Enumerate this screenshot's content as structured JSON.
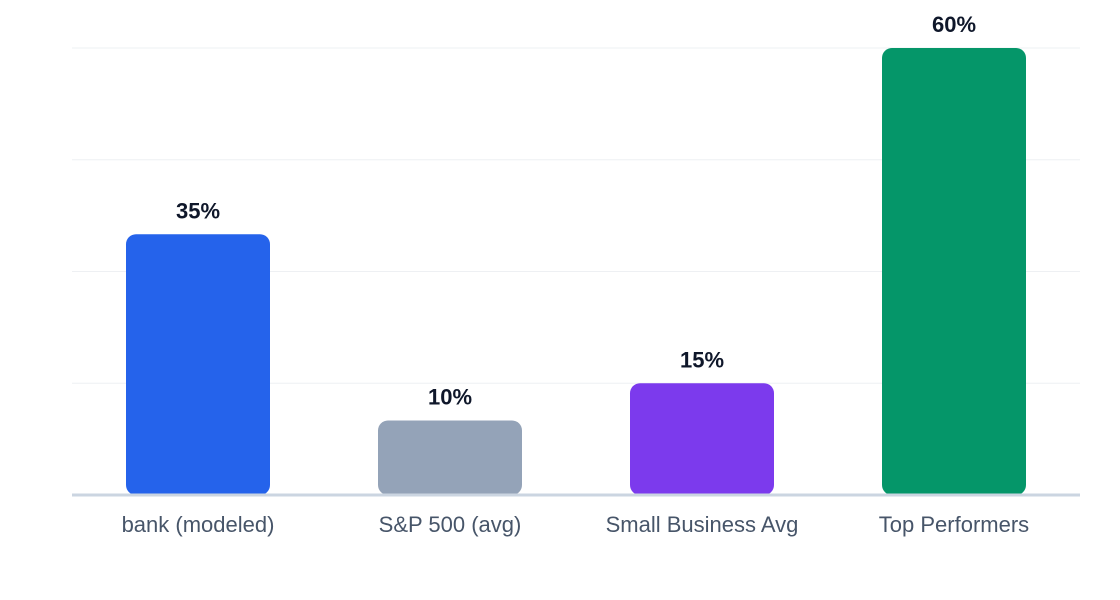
{
  "chart_data": {
    "type": "bar",
    "categories": [
      "bank (modeled)",
      "S&P 500 (avg)",
      "Small Business Avg",
      "Top Performers"
    ],
    "values": [
      35,
      10,
      15,
      60
    ],
    "data_labels": [
      "35%",
      "10%",
      "15%",
      "60%"
    ],
    "colors": [
      "#2563eb",
      "#94a3b8",
      "#7c3aed",
      "#059669"
    ],
    "ylim": [
      0,
      60
    ],
    "yticks": [
      0,
      15,
      30,
      45,
      60
    ],
    "grid": true,
    "legend": "none",
    "title": "",
    "xlabel": "",
    "ylabel": ""
  }
}
